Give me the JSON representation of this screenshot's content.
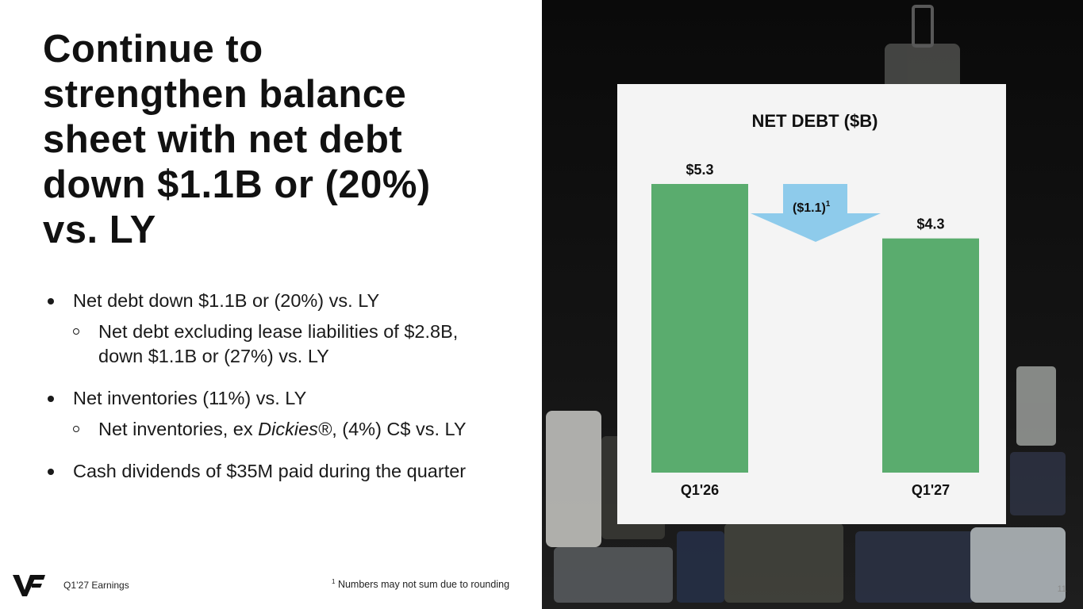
{
  "slide": {
    "title_lines": [
      "Continue to",
      "strengthen balance",
      "sheet with net debt",
      "down $1.1B or (20%)",
      "vs. LY"
    ],
    "bullets": [
      {
        "text": "Net debt down $1.1B or (20%) vs. LY",
        "sub": "Net debt excluding lease liabilities of $2.8B, down $1.1B or (27%) vs. LY"
      },
      {
        "text": "Net inventories (11%) vs. LY",
        "sub": [
          "Net inventories, ex ",
          "Dickies®",
          ", (4%) C$ vs. LY"
        ]
      },
      {
        "text": "Cash dividends of $35M paid during the quarter"
      }
    ],
    "footer": "Q1’27 Earnings",
    "footnote_marker": "1",
    "footnote": "Numbers may not sum due to rounding",
    "page_number": "11"
  },
  "chart_data": {
    "type": "bar",
    "title": "NET DEBT ($B)",
    "categories": [
      "Q1'26",
      "Q1'27"
    ],
    "values": [
      5.3,
      4.3
    ],
    "value_labels": [
      "$5.3",
      "$4.3"
    ],
    "color": "#5aac6e",
    "annotation": {
      "text": "($1.1)",
      "note": "1",
      "color": "#8ecbeb"
    }
  }
}
